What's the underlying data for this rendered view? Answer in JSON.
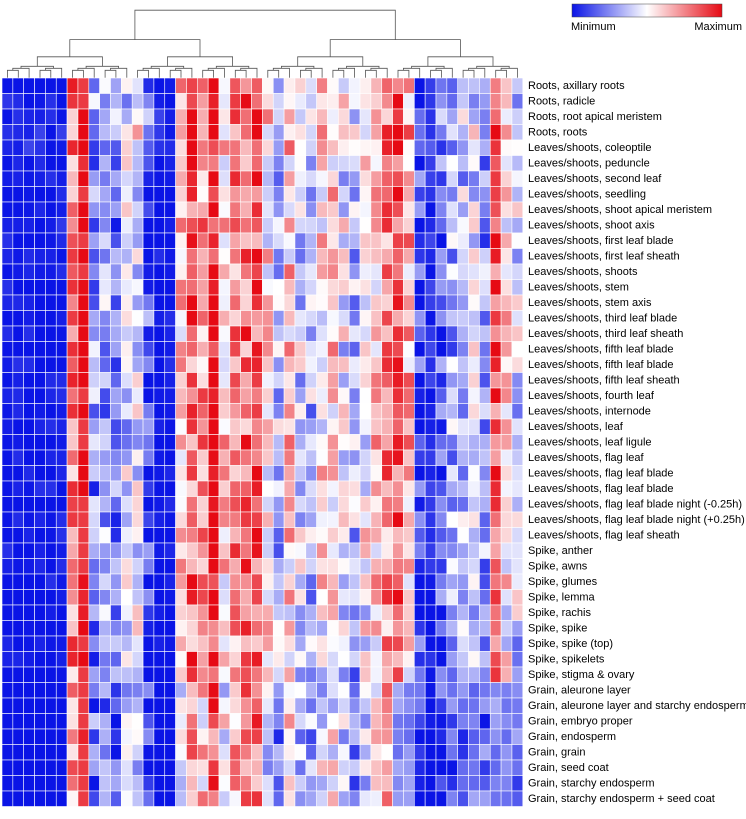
{
  "legend": {
    "min_label": "Minimum",
    "max_label": "Maximum",
    "min_color": "#0a14e6",
    "mid_color": "#ffffff",
    "max_color": "#e60a14"
  },
  "chart_data": {
    "type": "heatmap",
    "colormap": [
      "#0a14e6",
      "#ffffff",
      "#e60a14"
    ],
    "value_range": [
      0,
      1
    ],
    "column_count": 48,
    "row_dendrogram": false,
    "column_dendrogram": true,
    "rows": [
      "Roots, axillary roots",
      "Roots, radicle",
      "Roots, root apical meristem",
      "Roots, roots",
      "Leaves/shoots, coleoptile",
      "Leaves/shoots, peduncle",
      "Leaves/shoots, second leaf",
      "Leaves/shoots, seedling",
      "Leaves/shoots, shoot apical meristem",
      "Leaves/shoots, shoot axis",
      "Leaves/shoots, first leaf blade",
      "Leaves/shoots, first leaf sheath",
      "Leaves/shoots, shoots",
      "Leaves/shoots, stem",
      "Leaves/shoots, stem axis",
      "Leaves/shoots, third leaf blade",
      "Leaves/shoots, third leaf sheath",
      "Leaves/shoots, fifth leaf blade",
      "Leaves/shoots, fifth leaf blade",
      "Leaves/shoots, fifth leaf sheath",
      "Leaves/shoots, fourth leaf",
      "Leaves/shoots, internode",
      "Leaves/shoots, leaf",
      "Leaves/shoots, leaf ligule",
      "Leaves/shoots, flag leaf",
      "Leaves/shoots, flag leaf blade",
      "Leaves/shoots, flag leaf blade",
      "Leaves/shoots, flag leaf blade night (-0.25h)",
      "Leaves/shoots, flag leaf blade night (+0.25h)",
      "Leaves/shoots, flag leaf sheath",
      "Spike, anther",
      "Spike, awns",
      "Spike, glumes",
      "Spike, lemma",
      "Spike, rachis",
      "Spike, spike",
      "Spike, spike (top)",
      "Spike, spikelets",
      "Spike, stigma & ovary",
      "Grain, aleurone layer",
      "Grain, aleurone layer and starchy endosperm",
      "Grain, embryo proper",
      "Grain, endosperm",
      "Grain, grain",
      "Grain, seed coat",
      "Grain, starchy endosperm",
      "Grain, starchy endosperm + seed coat"
    ],
    "column_profile": [
      0.0,
      0.0,
      0.0,
      0.0,
      0.0,
      0.0,
      0.75,
      0.98,
      0.25,
      0.3,
      0.2,
      0.4,
      0.45,
      0.15,
      0.0,
      0.0,
      0.6,
      0.8,
      0.7,
      0.95,
      0.6,
      0.75,
      0.8,
      0.85,
      0.55,
      0.35,
      0.6,
      0.4,
      0.35,
      0.55,
      0.6,
      0.45,
      0.35,
      0.5,
      0.6,
      0.75,
      0.85,
      0.65,
      0.1,
      0.05,
      0.15,
      0.3,
      0.35,
      0.4,
      0.25,
      0.85,
      0.55,
      0.4
    ],
    "row_shift": [
      0.0,
      0.02,
      0.05,
      0.05,
      0.05,
      0.0,
      0.0,
      0.0,
      0.0,
      0.02,
      0.0,
      0.0,
      0.0,
      0.0,
      0.0,
      0.0,
      0.0,
      0.0,
      0.0,
      0.0,
      0.0,
      0.0,
      0.0,
      0.0,
      0.0,
      0.0,
      0.0,
      0.0,
      0.0,
      0.0,
      0.0,
      0.0,
      0.0,
      0.0,
      -0.02,
      -0.02,
      -0.02,
      -0.02,
      -0.05,
      -0.1,
      -0.1,
      -0.08,
      -0.1,
      -0.08,
      -0.1,
      -0.1,
      -0.1
    ],
    "grain_rows_damp_right": true
  }
}
